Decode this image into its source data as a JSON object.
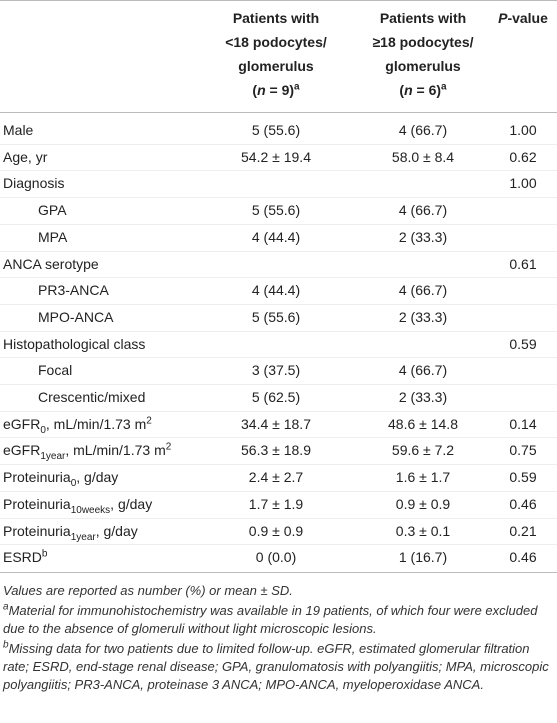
{
  "table": {
    "header": [
      [
        [
          "Patients with"
        ],
        [
          "<18 podocytes/"
        ],
        [
          "glomerulus"
        ],
        [
          "(",
          {
            "i": "n"
          },
          " = 9)",
          {
            "sup": "a"
          }
        ]
      ],
      [
        [
          "Patients with"
        ],
        [
          "≥18 podocytes/"
        ],
        [
          "glomerulus"
        ],
        [
          "(",
          {
            "i": "n"
          },
          " = 6)",
          {
            "sup": "a"
          }
        ]
      ],
      [
        [
          {
            "i": "P"
          },
          "-value"
        ]
      ]
    ],
    "rows": [
      {
        "label": [
          "Male"
        ],
        "cells": [
          "5 (55.6)",
          "4 (66.7)",
          "1.00"
        ]
      },
      {
        "label": [
          "Age, yr"
        ],
        "cells": [
          "54.2 ± 19.4",
          "58.0 ± 8.4",
          "0.62"
        ]
      },
      {
        "label": [
          "Diagnosis"
        ],
        "cells": [
          null,
          null,
          "1.00"
        ]
      },
      {
        "label": [
          "GPA"
        ],
        "indent": true,
        "cells": [
          "5 (55.6)",
          "4 (66.7)",
          null
        ]
      },
      {
        "label": [
          "MPA"
        ],
        "indent": true,
        "cells": [
          "4 (44.4)",
          "2 (33.3)",
          null
        ]
      },
      {
        "label": [
          "ANCA serotype"
        ],
        "cells": [
          null,
          null,
          "0.61"
        ]
      },
      {
        "label": [
          "PR3-ANCA"
        ],
        "indent": true,
        "cells": [
          "4 (44.4)",
          "4 (66.7)",
          null
        ]
      },
      {
        "label": [
          "MPO-ANCA"
        ],
        "indent": true,
        "cells": [
          "5 (55.6)",
          "2 (33.3)",
          null
        ]
      },
      {
        "label": [
          "Histopathological class"
        ],
        "cells": [
          null,
          null,
          "0.59"
        ]
      },
      {
        "label": [
          "Focal"
        ],
        "indent": true,
        "cells": [
          "3 (37.5)",
          "4 (66.7)",
          null
        ]
      },
      {
        "label": [
          "Crescentic/mixed"
        ],
        "indent": true,
        "cells": [
          "5 (62.5)",
          "2 (33.3)",
          null
        ]
      },
      {
        "label": [
          "eGFR",
          {
            "sub": "0"
          },
          ", mL/min/1.73 m",
          {
            "sup": "2"
          }
        ],
        "cells": [
          "34.4 ± 18.7",
          "48.6 ± 14.8",
          "0.14"
        ]
      },
      {
        "label": [
          "eGFR",
          {
            "sub": "1year"
          },
          ", mL/min/1.73 m",
          {
            "sup": "2"
          }
        ],
        "cells": [
          "56.3 ± 18.9",
          "59.6 ± 7.2",
          "0.75"
        ]
      },
      {
        "label": [
          "Proteinuria",
          {
            "sub": "0"
          },
          ", g/day"
        ],
        "cells": [
          "2.4 ± 2.7",
          "1.6 ± 1.7",
          "0.59"
        ]
      },
      {
        "label": [
          "Proteinuria",
          {
            "sub": "10weeks"
          },
          ", g/day"
        ],
        "cells": [
          "1.7 ± 1.9",
          "0.9 ± 0.9",
          "0.46"
        ]
      },
      {
        "label": [
          "Proteinuria",
          {
            "sub": "1year"
          },
          ", g/day"
        ],
        "cells": [
          "0.9 ± 0.9",
          "0.3 ± 0.1",
          "0.21"
        ]
      },
      {
        "label": [
          "ESRD",
          {
            "sup": "b"
          }
        ],
        "cells": [
          "0 (0.0)",
          "1 (16.7)",
          "0.46"
        ]
      }
    ]
  },
  "notes": [
    [
      "Values are reported as number (%) or mean ± SD."
    ],
    [
      {
        "sup": "a"
      },
      "Material for immunohistochemistry was available in 19 patients, of which four were excluded due to the absence of glomeruli without light microscopic lesions."
    ],
    [
      {
        "sup": "b"
      },
      "Missing data for two patients due to limited follow-up. eGFR, estimated glomerular filtration rate; ESRD, end-stage renal disease; GPA, granulomatosis with polyangiitis; MPA, microscopic polyangiitis; PR3-ANCA, proteinase 3 ANCA; MPO-ANCA, myeloperoxidase ANCA."
    ]
  ]
}
